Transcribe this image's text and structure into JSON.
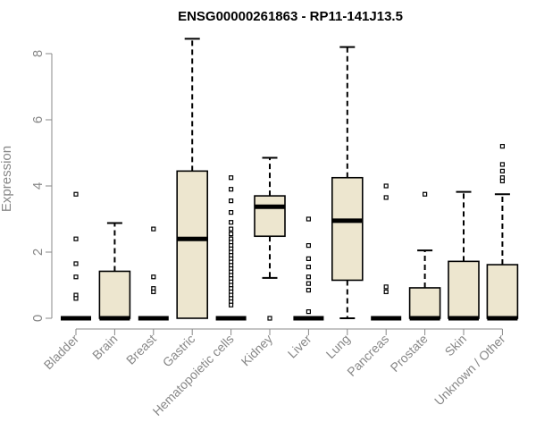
{
  "chart_data": {
    "type": "boxplot",
    "title": "ENSG00000261863 - RP11-141J13.5",
    "xlabel": "",
    "ylabel": "Expression",
    "ylim": [
      0,
      8.5
    ],
    "yticks": [
      0,
      2,
      4,
      6,
      8
    ],
    "colors": {
      "box_fill": "#ede6cf",
      "box_stroke": "#000000",
      "axis": "#888888"
    },
    "categories": [
      "Bladder",
      "Brain",
      "Breast",
      "Gastric",
      "Hematopoietic cells",
      "Kidney",
      "Liver",
      "Lung",
      "Pancreas",
      "Prostate",
      "Skin",
      "Unknown / Other"
    ],
    "boxes": [
      {
        "category": "Bladder",
        "q1": 0,
        "median": 0,
        "q3": 0,
        "whisker_low": 0,
        "whisker_high": 0,
        "outliers": [
          3.75,
          2.4,
          1.65,
          1.25,
          0.7,
          0.6
        ]
      },
      {
        "category": "Brain",
        "q1": 0,
        "median": 0,
        "q3": 1.42,
        "whisker_low": 0,
        "whisker_high": 2.88,
        "outliers": []
      },
      {
        "category": "Breast",
        "q1": 0,
        "median": 0,
        "q3": 0,
        "whisker_low": 0,
        "whisker_high": 0,
        "outliers": [
          2.7,
          1.25,
          0.9,
          0.8
        ]
      },
      {
        "category": "Gastric",
        "q1": 0,
        "median": 2.4,
        "q3": 4.45,
        "whisker_low": 0,
        "whisker_high": 8.45,
        "outliers": []
      },
      {
        "category": "Hematopoietic cells",
        "q1": 0,
        "median": 0,
        "q3": 0,
        "whisker_low": 0,
        "whisker_high": 0,
        "outliers": [
          4.25,
          3.9,
          3.55,
          3.2,
          2.9,
          2.7,
          2.55,
          2.4,
          2.3,
          2.2,
          2.1,
          2.0,
          1.9,
          1.8,
          1.7,
          1.6,
          1.5,
          1.4,
          1.3,
          1.2,
          1.1,
          1.0,
          0.9,
          0.8,
          0.7,
          0.6,
          0.5,
          0.4
        ]
      },
      {
        "category": "Kidney",
        "q1": 2.48,
        "median": 3.37,
        "q3": 3.7,
        "whisker_low": 1.22,
        "whisker_high": 4.85,
        "outliers": [
          0
        ]
      },
      {
        "category": "Liver",
        "q1": 0,
        "median": 0,
        "q3": 0,
        "whisker_low": 0,
        "whisker_high": 0,
        "outliers": [
          3.0,
          2.2,
          1.8,
          1.55,
          1.25,
          1.05,
          0.85,
          0.2
        ]
      },
      {
        "category": "Lung",
        "q1": 1.15,
        "median": 2.95,
        "q3": 4.25,
        "whisker_low": 0,
        "whisker_high": 8.2,
        "outliers": []
      },
      {
        "category": "Pancreas",
        "q1": 0,
        "median": 0,
        "q3": 0,
        "whisker_low": 0,
        "whisker_high": 0,
        "outliers": [
          4.0,
          3.65,
          0.95,
          0.8
        ]
      },
      {
        "category": "Prostate",
        "q1": 0,
        "median": 0,
        "q3": 0.92,
        "whisker_low": 0,
        "whisker_high": 2.05,
        "outliers": [
          3.75
        ]
      },
      {
        "category": "Skin",
        "q1": 0,
        "median": 0,
        "q3": 1.72,
        "whisker_low": 0,
        "whisker_high": 3.82,
        "outliers": []
      },
      {
        "category": "Unknown / Other",
        "q1": 0,
        "median": 0,
        "q3": 1.62,
        "whisker_low": 0,
        "whisker_high": 3.75,
        "outliers": [
          5.2,
          4.65,
          4.45,
          4.25,
          4.15
        ]
      }
    ]
  }
}
